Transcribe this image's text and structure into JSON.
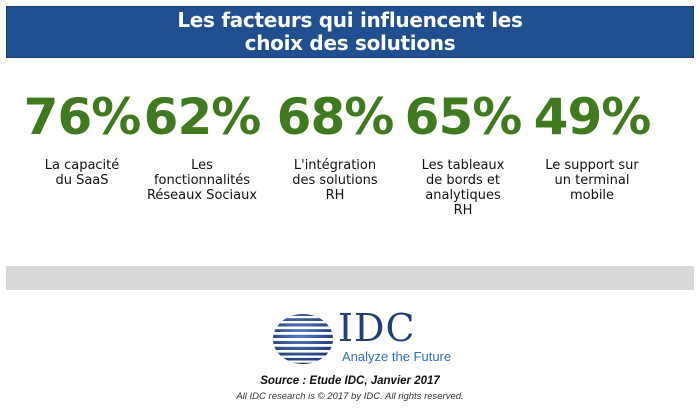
{
  "header": {
    "title_line1": "Les facteurs qui influencent les",
    "title_line2": "choix des solutions"
  },
  "stats": [
    {
      "value": "76%",
      "label": "La capacité\ndu SaaS"
    },
    {
      "value": "62%",
      "label": "Les\nfonctionnalités\nRéseaux Sociaux"
    },
    {
      "value": "68%",
      "label": "L'intégration\ndes solutions\nRH"
    },
    {
      "value": "65%",
      "label": "Les tableaux\nde bords et\nanalytiques\nRH"
    },
    {
      "value": "49%",
      "label": "Le support sur\nun terminal\nmobile"
    }
  ],
  "logo": {
    "text": "IDC",
    "tagline": "Analyze the Future"
  },
  "footer": {
    "source": "Source : Etude IDC, Janvier 2017",
    "copyright": "All IDC research is © 2017 by IDC. All rights reserved."
  },
  "colors": {
    "header_bg": "#1f4f8f",
    "stat_green": "#3f7a1e",
    "logo_blue": "#213f7a",
    "tagline_blue": "#2f6fb6"
  }
}
